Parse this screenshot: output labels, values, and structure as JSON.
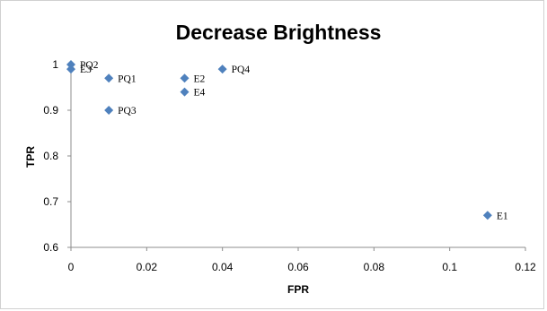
{
  "chart_data": {
    "type": "scatter",
    "title": "Decrease Brightness",
    "xlabel": "FPR",
    "ylabel": "TPR",
    "xlim": [
      0,
      0.12
    ],
    "ylim": [
      0.6,
      1.0
    ],
    "x_ticks": [
      "0",
      "0.02",
      "0.04",
      "0.06",
      "0.08",
      "0.1",
      "0.12"
    ],
    "y_ticks": [
      "0.6",
      "0.7",
      "0.8",
      "0.9",
      "1"
    ],
    "grid": false,
    "marker_color": "#4f81bd",
    "points": [
      {
        "label": "PQ2",
        "x": 0.0,
        "y": 1.0
      },
      {
        "label": "E3",
        "x": 0.0,
        "y": 0.99
      },
      {
        "label": "PQ1",
        "x": 0.01,
        "y": 0.97
      },
      {
        "label": "PQ3",
        "x": 0.01,
        "y": 0.9
      },
      {
        "label": "E2",
        "x": 0.03,
        "y": 0.97
      },
      {
        "label": "E4",
        "x": 0.03,
        "y": 0.94
      },
      {
        "label": "PQ4",
        "x": 0.04,
        "y": 0.99
      },
      {
        "label": "E1",
        "x": 0.11,
        "y": 0.67
      }
    ]
  }
}
